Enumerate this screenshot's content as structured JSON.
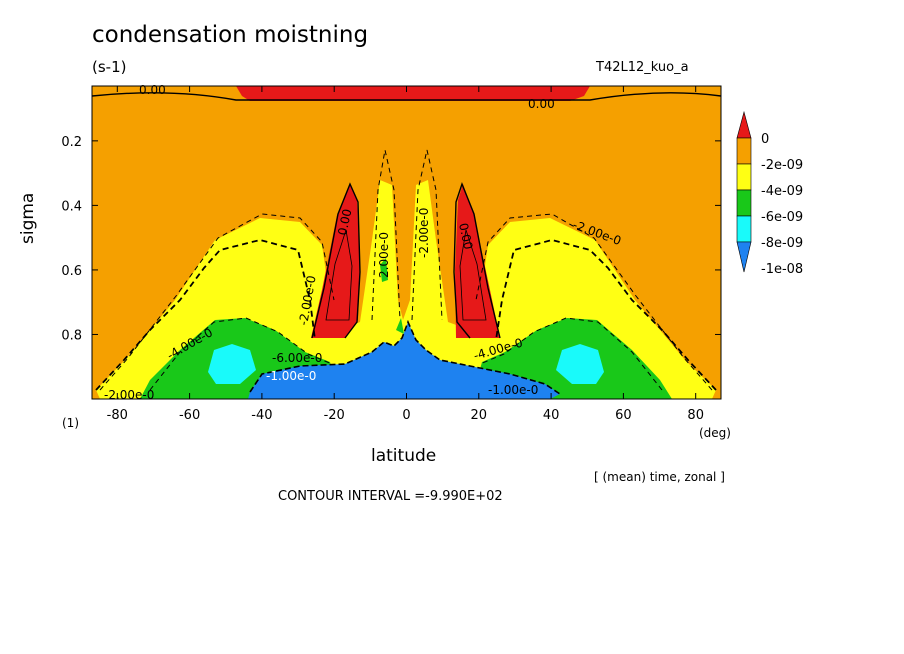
{
  "title": "condensation moistning",
  "units": "(s-1)",
  "run_name": "T42L12_kuo_a",
  "reduction": "[ (mean) time, zonal ]",
  "level_marker": "(1)",
  "contour_interval": "CONTOUR INTERVAL =-9.990E+02",
  "chart_data": {
    "type": "contour",
    "title": "condensation moistning",
    "units": "(s-1)",
    "xlabel": "latitude",
    "xunit": "(deg)",
    "ylabel": "sigma",
    "xlim": [
      -87,
      87
    ],
    "ylim": [
      1.0,
      0.03
    ],
    "x_ticks": [
      -80,
      -60,
      -40,
      -20,
      0,
      20,
      40,
      60,
      80
    ],
    "y_ticks": [
      0.2,
      0.4,
      0.6,
      0.8
    ],
    "legend": {
      "position": "right",
      "levels": [
        {
          "label": "0",
          "color": "#e61919"
        },
        {
          "label": "-2e-09",
          "color": "#f5a000"
        },
        {
          "label": "-4e-09",
          "color": "#ffff14"
        },
        {
          "label": "-6e-09",
          "color": "#19c819"
        },
        {
          "label": "-8e-09",
          "color": "#19fafa"
        },
        {
          "label": "-1e-08",
          "color": "#1e82f0"
        }
      ]
    },
    "contour_labels": [
      "0.00",
      "0.00",
      "0.00",
      "0.00",
      "-2.00e-0",
      "-2.00e-0",
      "2.00e-0",
      "-2.00e-0",
      "-2.00e-0",
      "-4.00e-0",
      "-4.00e-0",
      "-6.00e-0",
      "-1.00e-0",
      "-1.00e-0"
    ],
    "regions": [
      {
        "level": "0",
        "description": "positive moistening near the model top between about 40S and 40N"
      },
      {
        "level": "0",
        "description": "positive lobes centred near 15S and 15N, sigma 0.35 to 0.8"
      },
      {
        "level": "-1e-08",
        "description": "strongest drying in the tropical lower troposphere, 35S to 35N, sigma 0.88 to 1.0"
      },
      {
        "level": "-8e-09",
        "description": "lower-tropospheric subtropical minima near 50S and 50N"
      }
    ]
  }
}
